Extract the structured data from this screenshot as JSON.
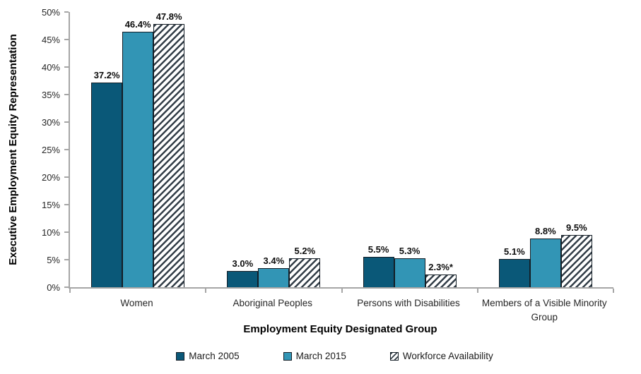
{
  "chart_data": {
    "type": "bar",
    "title": "",
    "xlabel": "Employment Equity Designated Group",
    "ylabel": "Executive Employment Equity Representation",
    "ylim": [
      0,
      50
    ],
    "y_tick_step": 5,
    "y_ticks": [
      "0%",
      "5%",
      "10%",
      "15%",
      "20%",
      "25%",
      "30%",
      "35%",
      "40%",
      "45%",
      "50%"
    ],
    "grid": false,
    "legend_position": "bottom",
    "categories": [
      "Women",
      "Aboriginal Peoples",
      "Persons with Disabilities",
      "Members of a Visible Minority Group"
    ],
    "series": [
      {
        "name": "March 2005",
        "fill": "solid",
        "color": "#0a5878",
        "values": [
          37.2,
          3.0,
          5.5,
          5.1
        ],
        "labels": [
          "37.2%",
          "3.0%",
          "5.5%",
          "5.1%"
        ]
      },
      {
        "name": "March 2015",
        "fill": "solid",
        "color": "#3295b5",
        "values": [
          46.4,
          3.4,
          5.3,
          8.8
        ],
        "labels": [
          "46.4%",
          "3.4%",
          "5.3%",
          "8.8%"
        ]
      },
      {
        "name": "Workforce Availability",
        "fill": "hatch",
        "color": "#333e48",
        "values": [
          47.8,
          5.2,
          2.3,
          9.5
        ],
        "labels": [
          "47.8%",
          "5.2%",
          "2.3%*",
          "9.5%"
        ]
      }
    ],
    "colors": {
      "axis": "#a6a6a6",
      "bar_border": "#141e26",
      "text": "#262626",
      "label_text": "#0d0d0d"
    }
  }
}
